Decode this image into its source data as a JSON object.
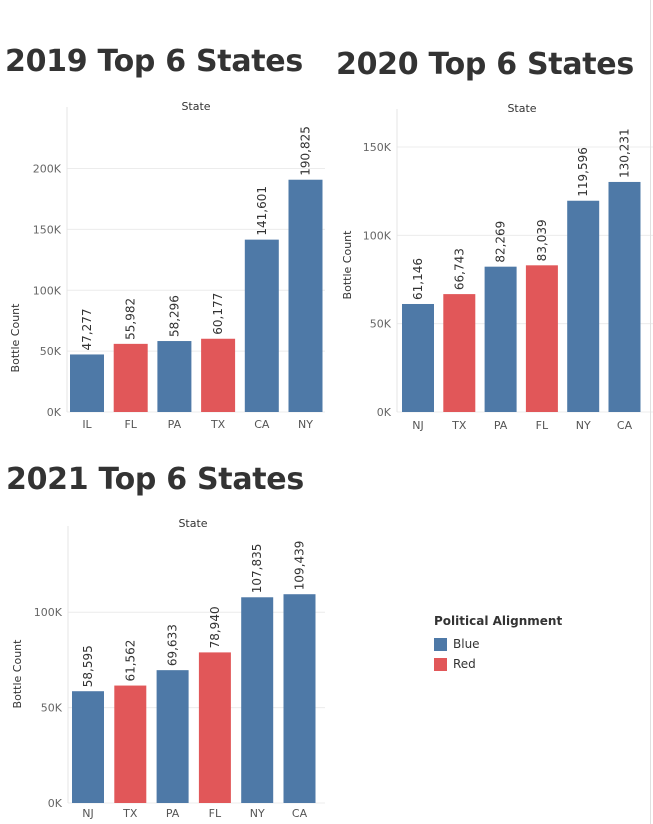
{
  "colors": {
    "Blue": "#4e79a7",
    "Red": "#e15759"
  },
  "legend": {
    "title": "Political Alignment",
    "items": [
      {
        "label": "Blue",
        "color": "#4e79a7"
      },
      {
        "label": "Red",
        "color": "#e15759"
      }
    ]
  },
  "chart_data": [
    {
      "type": "bar",
      "title": "2019 Top 6 States",
      "xlabel": "State",
      "ylabel": "Bottle Count",
      "categories": [
        "IL",
        "FL",
        "PA",
        "TX",
        "CA",
        "NY"
      ],
      "values": [
        47277,
        55982,
        58296,
        60177,
        141601,
        190825
      ],
      "value_labels": [
        "47,277",
        "55,982",
        "58,296",
        "60,177",
        "141,601",
        "190,825"
      ],
      "alignment": [
        "Blue",
        "Red",
        "Blue",
        "Red",
        "Blue",
        "Blue"
      ],
      "ylim": [
        0,
        244000
      ],
      "yticks": [
        0,
        50000,
        100000,
        150000,
        200000
      ],
      "ytick_labels": [
        "0K",
        "50K",
        "100K",
        "150K",
        "200K"
      ],
      "grid": true
    },
    {
      "type": "bar",
      "title": "2020 Top 6 States",
      "xlabel": "State",
      "ylabel": "Bottle Count",
      "categories": [
        "NJ",
        "TX",
        "PA",
        "FL",
        "NY",
        "CA"
      ],
      "values": [
        61146,
        66743,
        82269,
        83039,
        119596,
        130231
      ],
      "value_labels": [
        "61,146",
        "66,743",
        "82,269",
        "83,039",
        "119,596",
        "130,231"
      ],
      "alignment": [
        "Blue",
        "Red",
        "Blue",
        "Red",
        "Blue",
        "Blue"
      ],
      "ylim": [
        0,
        167000
      ],
      "yticks": [
        0,
        50000,
        100000,
        150000
      ],
      "ytick_labels": [
        "0K",
        "50K",
        "100K",
        "150K"
      ],
      "grid": true
    },
    {
      "type": "bar",
      "title": "2021 Top 6 States",
      "xlabel": "State",
      "ylabel": "Bottle Count",
      "categories": [
        "NJ",
        "TX",
        "PA",
        "FL",
        "NY",
        "CA"
      ],
      "values": [
        58595,
        61562,
        69633,
        78940,
        107835,
        109439
      ],
      "value_labels": [
        "58,595",
        "61,562",
        "69,633",
        "78,940",
        "107,835",
        "109,439"
      ],
      "alignment": [
        "Blue",
        "Red",
        "Blue",
        "Red",
        "Blue",
        "Blue"
      ],
      "ylim": [
        0,
        141000
      ],
      "yticks": [
        0,
        50000,
        100000
      ],
      "ytick_labels": [
        "0K",
        "50K",
        "100K"
      ],
      "grid": true
    }
  ]
}
